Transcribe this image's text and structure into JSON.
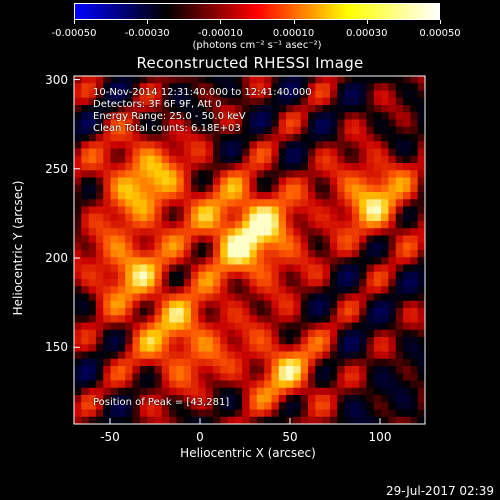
{
  "colorbar": {
    "colors": [
      "#0000ff",
      "#000000",
      "#ff0000",
      "#ffff00",
      "#ffffff"
    ],
    "ticks": [
      "-0.00050",
      "-0.00030",
      "-0.00010",
      "0.00010",
      "0.00030",
      "0.00050"
    ],
    "units": "(photons cm⁻² s⁻¹ asec⁻²)"
  },
  "chart_data": {
    "type": "heatmap",
    "title": "Reconstructed RHESSI Image",
    "xlabel": "Heliocentric X (arcsec)",
    "ylabel": "Heliocentric Y (arcsec)",
    "xlim": [
      -70,
      125
    ],
    "ylim": [
      107,
      302
    ],
    "xticks": [
      "-50",
      "0",
      "50",
      "100"
    ],
    "yticks": [
      "150",
      "200",
      "250",
      "300"
    ],
    "value_range": [
      -0.0005,
      0.0005
    ],
    "peak": [
      43,
      281
    ],
    "info_lines": [
      "10-Nov-2014 12:31:40.000 to 12:41:40.000",
      "Detectors: 3F 6F 9F, Att 0",
      "Energy Range: 25.0 - 50.0 keV",
      "Clean     Total counts: 6.18E+03"
    ],
    "peak_text": "Position of Peak = [43,281]"
  },
  "timestamp": "29-Jul-2017 02:39"
}
